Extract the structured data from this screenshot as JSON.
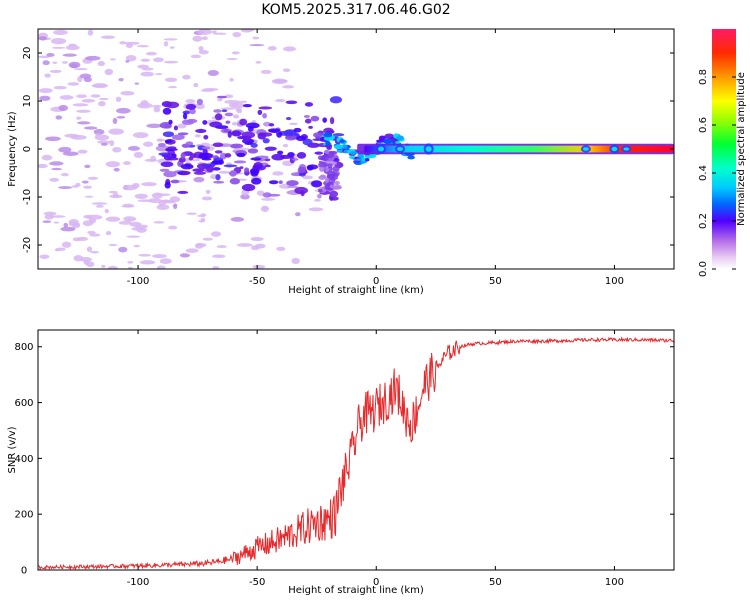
{
  "title": "KOM5.2025.317.06.46.G02",
  "chart_data": [
    {
      "type": "heatmap",
      "name": "spectrogram",
      "xlabel": "Height of straight line (km)",
      "ylabel": "Frequency (Hz)",
      "xlim": [
        -142,
        125
      ],
      "ylim": [
        -25,
        25
      ],
      "xticks": [
        -100,
        -50,
        0,
        50,
        100
      ],
      "yticks": [
        -20,
        -10,
        0,
        10,
        20
      ],
      "colorbar": {
        "label": "Normalized spectral amplitude",
        "range": [
          0,
          1
        ],
        "ticks": [
          0.0,
          0.2,
          0.4,
          0.6,
          0.8
        ],
        "tick_labels": [
          "0.0",
          "0.2",
          "0.4",
          "0.6",
          "0.8"
        ],
        "colors": [
          "#ffffff",
          "#d9b3f0",
          "#8a2be2",
          "#0000ff",
          "#00bfff",
          "#00ffcc",
          "#00ff00",
          "#aaff00",
          "#ffff00",
          "#ff8c00",
          "#ff0000",
          "#ff1a66"
        ]
      },
      "ridge": {
        "description_x": [
          -25,
          0,
          25,
          50,
          75,
          100,
          125
        ],
        "freq": [
          0.0,
          0.0,
          0.0,
          0.0,
          0.0,
          0.0,
          0.0
        ]
      }
    },
    {
      "type": "line",
      "name": "snr",
      "xlabel": "Height of straight line (km)",
      "ylabel": "SNR (v/v)",
      "xlim": [
        -142,
        125
      ],
      "ylim": [
        0,
        860
      ],
      "xticks": [
        -100,
        -50,
        0,
        50,
        100
      ],
      "yticks": [
        0,
        200,
        400,
        600,
        800
      ],
      "color": "#e8292b",
      "series": [
        {
          "name": "SNR",
          "x": [
            -142,
            -120,
            -100,
            -80,
            -70,
            -60,
            -50,
            -40,
            -30,
            -25,
            -20,
            -17,
            -15,
            -13,
            -10,
            -8,
            -5,
            -2,
            0,
            3,
            5,
            8,
            10,
            12,
            15,
            18,
            20,
            25,
            30,
            35,
            40,
            50,
            60,
            70,
            80,
            90,
            100,
            110,
            125
          ],
          "values": [
            10,
            12,
            15,
            20,
            25,
            40,
            80,
            110,
            150,
            170,
            180,
            200,
            280,
            340,
            420,
            500,
            560,
            560,
            580,
            600,
            620,
            650,
            620,
            560,
            520,
            600,
            660,
            720,
            775,
            800,
            810,
            815,
            820,
            820,
            822,
            825,
            825,
            825,
            822
          ]
        }
      ]
    }
  ]
}
